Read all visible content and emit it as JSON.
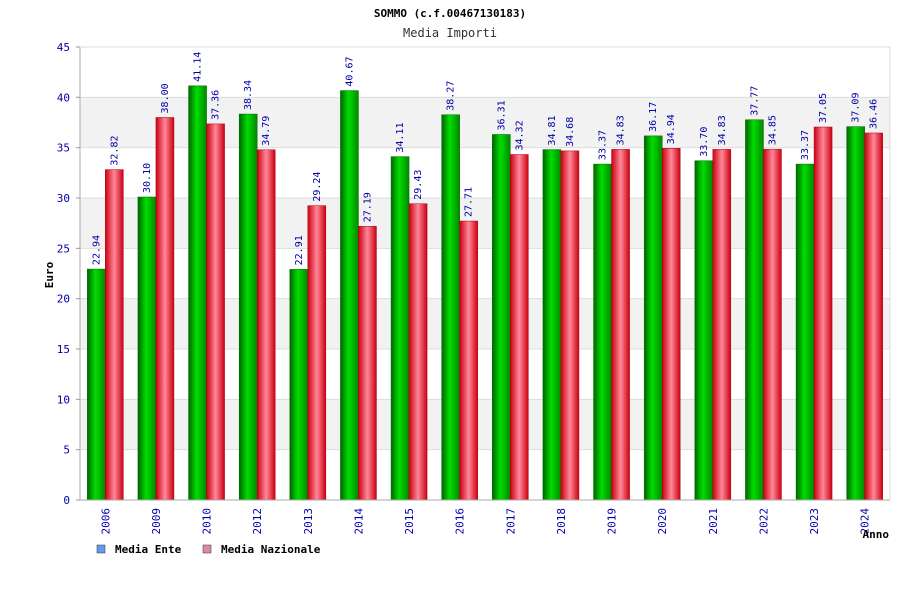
{
  "chart_data": {
    "type": "bar",
    "title": "SOMMO (c.f.00467130183)",
    "subtitle": "Media Importi",
    "xlabel": "Anno",
    "ylabel": "Euro",
    "ylim": [
      0,
      45
    ],
    "yticks": [
      0,
      5,
      10,
      15,
      20,
      25,
      30,
      35,
      40,
      45
    ],
    "grid": true,
    "legend_position": "bottom-left",
    "categories": [
      "2006",
      "2009",
      "2010",
      "2012",
      "2013",
      "2014",
      "2015",
      "2016",
      "2017",
      "2018",
      "2019",
      "2020",
      "2021",
      "2022",
      "2023",
      "2024"
    ],
    "series": [
      {
        "name": "Media Ente",
        "color": "#00bb00",
        "legend_color": "#6699ee",
        "values": [
          22.94,
          30.1,
          41.14,
          38.34,
          22.91,
          40.67,
          34.11,
          38.27,
          36.31,
          34.81,
          33.37,
          36.17,
          33.7,
          37.77,
          33.37,
          37.09
        ],
        "labels": [
          "22.94",
          "30.10",
          "41.14",
          "38.34",
          "22.91",
          "40.67",
          "34.11",
          "38.27",
          "36.31",
          "34.81",
          "33.37",
          "36.17",
          "33.70",
          "37.77",
          "33.37",
          "37.09"
        ]
      },
      {
        "name": "Media Nazionale",
        "color": "#ee2233",
        "legend_color": "#dd88aa",
        "values": [
          32.82,
          38.0,
          37.36,
          34.79,
          29.24,
          27.19,
          29.43,
          27.71,
          34.32,
          34.68,
          34.83,
          34.94,
          34.83,
          34.85,
          37.05,
          36.46
        ],
        "labels": [
          "32.82",
          "38.00",
          "37.36",
          "34.79",
          "29.24",
          "27.19",
          "29.43",
          "27.71",
          "34.32",
          "34.68",
          "34.83",
          "34.94",
          "34.83",
          "34.85",
          "37.05",
          "36.46"
        ]
      }
    ]
  }
}
